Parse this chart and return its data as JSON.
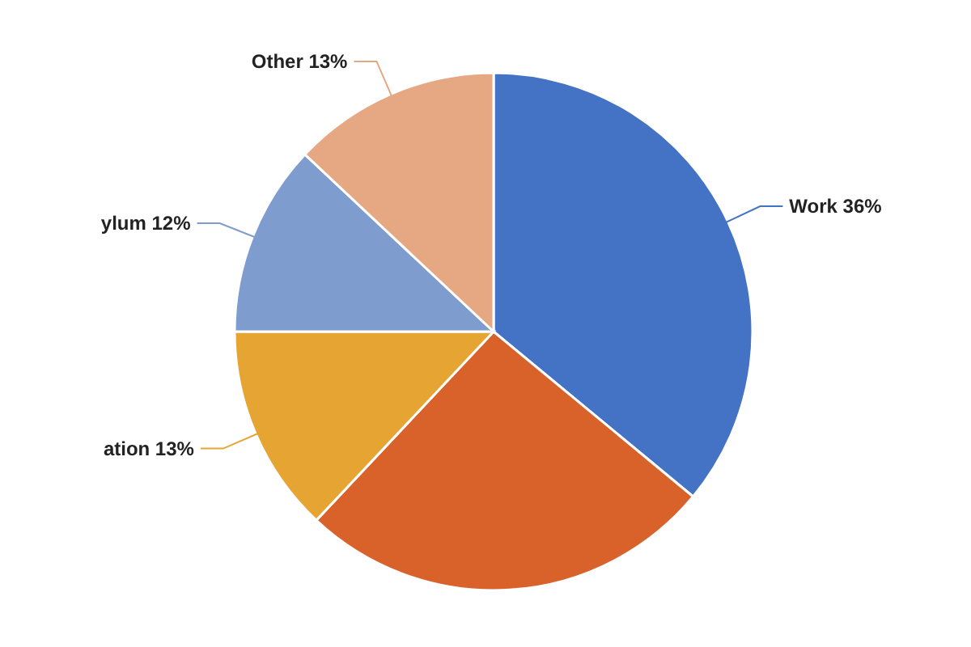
{
  "chart_data": {
    "type": "pie",
    "categories": [
      "Work",
      null,
      "ation",
      "ylum",
      "Other"
    ],
    "values": [
      36,
      26,
      13,
      12,
      13
    ],
    "value_labels": [
      "36%",
      null,
      "13%",
      "12%",
      "13%"
    ],
    "colors": [
      "#4472c4",
      "#d9622b",
      "#e6a532",
      "#7f9ccf",
      "#e5a883"
    ],
    "legend": false
  }
}
